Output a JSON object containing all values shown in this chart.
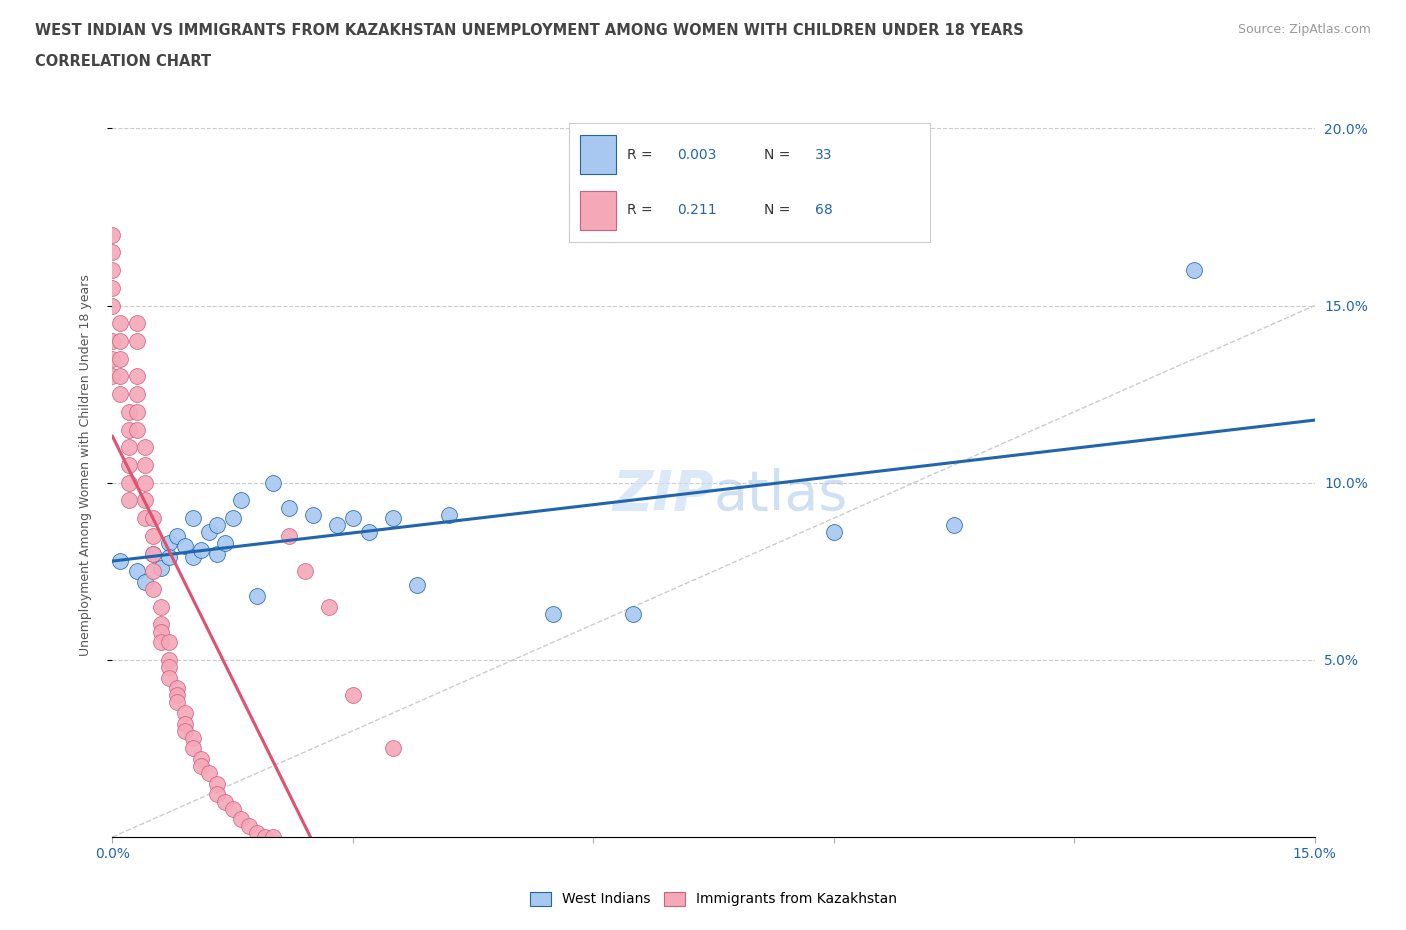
{
  "title_line1": "WEST INDIAN VS IMMIGRANTS FROM KAZAKHSTAN UNEMPLOYMENT AMONG WOMEN WITH CHILDREN UNDER 18 YEARS",
  "title_line2": "CORRELATION CHART",
  "source": "Source: ZipAtlas.com",
  "ylabel": "Unemployment Among Women with Children Under 18 years",
  "xlim": [
    0.0,
    0.15
  ],
  "ylim": [
    0.0,
    0.21
  ],
  "color_blue": "#a8c8f0",
  "color_pink": "#f4a8b8",
  "color_blue_dark": "#2166ac",
  "color_pink_dark": "#d06080",
  "color_trend_blue": "#2166ac",
  "color_trend_pink": "#e05070",
  "color_diag": "#cccccc",
  "west_indians_x": [
    0.001,
    0.003,
    0.004,
    0.005,
    0.006,
    0.007,
    0.007,
    0.008,
    0.009,
    0.01,
    0.01,
    0.011,
    0.012,
    0.013,
    0.013,
    0.014,
    0.015,
    0.016,
    0.018,
    0.02,
    0.022,
    0.025,
    0.028,
    0.03,
    0.032,
    0.035,
    0.038,
    0.042,
    0.055,
    0.065,
    0.09,
    0.105,
    0.135
  ],
  "west_indians_y": [
    0.078,
    0.075,
    0.072,
    0.08,
    0.076,
    0.083,
    0.079,
    0.085,
    0.082,
    0.079,
    0.09,
    0.081,
    0.086,
    0.08,
    0.088,
    0.083,
    0.09,
    0.095,
    0.068,
    0.1,
    0.093,
    0.091,
    0.088,
    0.09,
    0.086,
    0.09,
    0.071,
    0.091,
    0.063,
    0.063,
    0.086,
    0.088,
    0.16
  ],
  "kazakhstan_x": [
    0.0,
    0.0,
    0.0,
    0.0,
    0.0,
    0.0,
    0.0,
    0.0,
    0.001,
    0.001,
    0.001,
    0.001,
    0.001,
    0.002,
    0.002,
    0.002,
    0.002,
    0.002,
    0.002,
    0.003,
    0.003,
    0.003,
    0.003,
    0.003,
    0.003,
    0.004,
    0.004,
    0.004,
    0.004,
    0.004,
    0.005,
    0.005,
    0.005,
    0.005,
    0.005,
    0.006,
    0.006,
    0.006,
    0.006,
    0.007,
    0.007,
    0.007,
    0.007,
    0.008,
    0.008,
    0.008,
    0.009,
    0.009,
    0.009,
    0.01,
    0.01,
    0.011,
    0.011,
    0.012,
    0.013,
    0.013,
    0.014,
    0.015,
    0.016,
    0.017,
    0.018,
    0.019,
    0.02,
    0.022,
    0.024,
    0.027,
    0.03,
    0.035
  ],
  "kazakhstan_y": [
    0.17,
    0.165,
    0.16,
    0.155,
    0.15,
    0.14,
    0.135,
    0.13,
    0.145,
    0.14,
    0.135,
    0.13,
    0.125,
    0.12,
    0.115,
    0.11,
    0.105,
    0.1,
    0.095,
    0.145,
    0.14,
    0.13,
    0.125,
    0.12,
    0.115,
    0.11,
    0.105,
    0.1,
    0.095,
    0.09,
    0.09,
    0.085,
    0.08,
    0.075,
    0.07,
    0.065,
    0.06,
    0.058,
    0.055,
    0.055,
    0.05,
    0.048,
    0.045,
    0.042,
    0.04,
    0.038,
    0.035,
    0.032,
    0.03,
    0.028,
    0.025,
    0.022,
    0.02,
    0.018,
    0.015,
    0.012,
    0.01,
    0.008,
    0.005,
    0.003,
    0.001,
    0.0,
    0.0,
    0.085,
    0.075,
    0.065,
    0.04,
    0.025
  ]
}
